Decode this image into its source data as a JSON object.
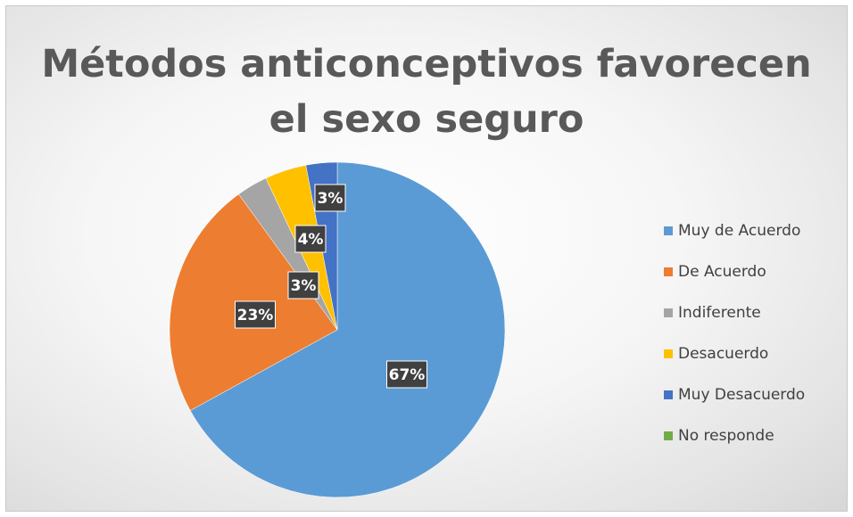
{
  "chart_data": {
    "type": "pie",
    "title": "Métodos anticonceptivos favorecen el sexo seguro",
    "title_lines": [
      "Métodos anticonceptivos favorecen",
      "el sexo seguro"
    ],
    "categories": [
      "Muy de Acuerdo",
      "De Acuerdo",
      "Indiferente",
      "Desacuerdo",
      "Muy Desacuerdo",
      "No responde"
    ],
    "values": [
      67,
      23,
      3,
      4,
      3,
      0
    ],
    "data_labels": [
      "67%",
      "23%",
      "3%",
      "4%",
      "3%",
      ""
    ],
    "colors": [
      "#5b9bd5",
      "#ed7d31",
      "#a5a5a5",
      "#ffc000",
      "#4472c4",
      "#70ad47"
    ],
    "start_angle_deg": 0,
    "direction": "clockwise",
    "legend_position": "right"
  }
}
